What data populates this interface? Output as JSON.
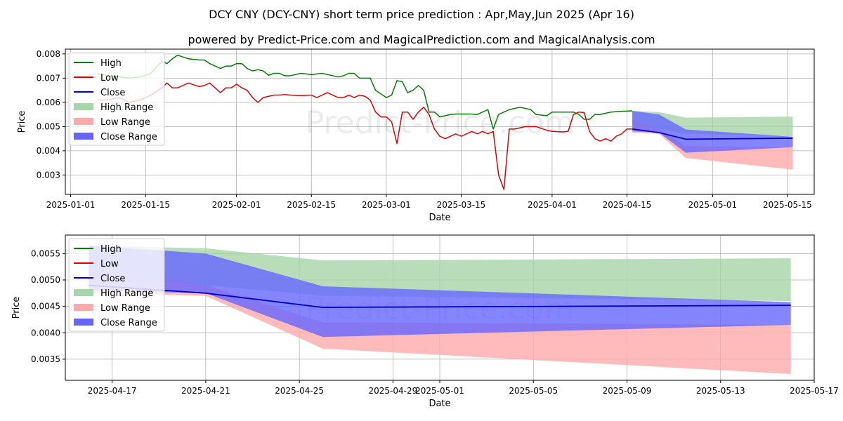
{
  "title": "DCY CNY (DCY-CNY) short term price prediction : Apr,May,Jun 2025 (Apr 16)",
  "subtitle": "powered by Predict-Price.com and MagicalPrediction.com and MagicalAnalysis.com",
  "watermark": "Predict-Price.com",
  "colors": {
    "high": "#008000",
    "low": "#e00000",
    "close": "#0000cc",
    "high_range": "#a8d5a8",
    "low_range": "#ffaaaa",
    "close_range": "#6666ff",
    "grid": "#b0b0b0"
  },
  "chart_data": [
    {
      "type": "line",
      "xlabel": "Date",
      "ylabel": "Price",
      "grid": true,
      "legend_placement": "top-left",
      "xlim": [
        "2024-12-31",
        "2025-05-20"
      ],
      "ylim": [
        0.0022,
        0.0082
      ],
      "xticks": [
        "2025-01-01",
        "2025-01-15",
        "2025-02-01",
        "2025-02-15",
        "2025-03-01",
        "2025-03-15",
        "2025-04-01",
        "2025-04-15",
        "2025-05-01",
        "2025-05-15"
      ],
      "yticks": [
        0.003,
        0.004,
        0.005,
        0.006,
        0.007,
        0.008
      ],
      "ytick_labels": [
        "0.003",
        "0.004",
        "0.005",
        "0.006",
        "0.007",
        "0.008"
      ],
      "legend": [
        "High",
        "Low",
        "Close",
        "High Range",
        "Low Range",
        "Close Range"
      ],
      "history": {
        "high": [
          [
            "2025-01-06",
            0.0072
          ],
          [
            "2025-01-08",
            0.0071
          ],
          [
            "2025-01-10",
            0.00705
          ],
          [
            "2025-01-12",
            0.007
          ],
          [
            "2025-01-14",
            0.00705
          ],
          [
            "2025-01-16",
            0.0072
          ],
          [
            "2025-01-18",
            0.0077
          ],
          [
            "2025-01-19",
            0.0076
          ],
          [
            "2025-01-20",
            0.0078
          ],
          [
            "2025-01-21",
            0.00795
          ],
          [
            "2025-01-23",
            0.0078
          ],
          [
            "2025-01-25",
            0.00775
          ],
          [
            "2025-01-26",
            0.00775
          ],
          [
            "2025-01-27",
            0.0076
          ],
          [
            "2025-01-29",
            0.0074
          ],
          [
            "2025-01-30",
            0.0075
          ],
          [
            "2025-01-31",
            0.0075
          ],
          [
            "2025-02-01",
            0.0076
          ],
          [
            "2025-02-02",
            0.0076
          ],
          [
            "2025-02-03",
            0.0074
          ],
          [
            "2025-02-04",
            0.0073
          ],
          [
            "2025-02-05",
            0.00735
          ],
          [
            "2025-02-06",
            0.0073
          ],
          [
            "2025-02-07",
            0.00712
          ],
          [
            "2025-02-08",
            0.0072
          ],
          [
            "2025-02-09",
            0.0072
          ],
          [
            "2025-02-10",
            0.0071
          ],
          [
            "2025-02-11",
            0.0071
          ],
          [
            "2025-02-13",
            0.0072
          ],
          [
            "2025-02-15",
            0.00715
          ],
          [
            "2025-02-17",
            0.0072
          ],
          [
            "2025-02-19",
            0.0071
          ],
          [
            "2025-02-20",
            0.00705
          ],
          [
            "2025-02-21",
            0.0071
          ],
          [
            "2025-02-22",
            0.0072
          ],
          [
            "2025-02-23",
            0.0072
          ],
          [
            "2025-02-24",
            0.007
          ],
          [
            "2025-02-26",
            0.007
          ],
          [
            "2025-02-27",
            0.0065
          ],
          [
            "2025-03-01",
            0.0062
          ],
          [
            "2025-03-02",
            0.0063
          ],
          [
            "2025-03-03",
            0.0069
          ],
          [
            "2025-03-04",
            0.00685
          ],
          [
            "2025-03-05",
            0.0064
          ],
          [
            "2025-03-06",
            0.0065
          ],
          [
            "2025-03-07",
            0.0067
          ],
          [
            "2025-03-08",
            0.0065
          ],
          [
            "2025-03-09",
            0.0056
          ],
          [
            "2025-03-10",
            0.0056
          ],
          [
            "2025-03-11",
            0.0054
          ],
          [
            "2025-03-13",
            0.0055
          ],
          [
            "2025-03-14",
            0.00552
          ],
          [
            "2025-03-15",
            0.00552
          ],
          [
            "2025-03-17",
            0.00552
          ],
          [
            "2025-03-18",
            0.0055
          ],
          [
            "2025-03-19",
            0.0056
          ],
          [
            "2025-03-20",
            0.0057
          ],
          [
            "2025-03-21",
            0.0049
          ],
          [
            "2025-03-22",
            0.0055
          ],
          [
            "2025-03-23",
            0.0056
          ],
          [
            "2025-03-24",
            0.0057
          ],
          [
            "2025-03-26",
            0.0058
          ],
          [
            "2025-03-28",
            0.0057
          ],
          [
            "2025-03-29",
            0.0055
          ],
          [
            "2025-03-31",
            0.00545
          ],
          [
            "2025-04-01",
            0.0056
          ],
          [
            "2025-04-03",
            0.0056
          ],
          [
            "2025-04-05",
            0.0056
          ],
          [
            "2025-04-06",
            0.0055
          ],
          [
            "2025-04-07",
            0.0053
          ],
          [
            "2025-04-08",
            0.0053
          ],
          [
            "2025-04-09",
            0.0055
          ],
          [
            "2025-04-10",
            0.0055
          ],
          [
            "2025-04-12",
            0.0056
          ],
          [
            "2025-04-14",
            0.00563
          ],
          [
            "2025-04-16",
            0.00565
          ]
        ],
        "low": [
          [
            "2025-01-06",
            0.0061
          ],
          [
            "2025-01-08",
            0.0061
          ],
          [
            "2025-01-10",
            0.0062
          ],
          [
            "2025-01-12",
            0.006
          ],
          [
            "2025-01-14",
            0.0061
          ],
          [
            "2025-01-15",
            0.0062
          ],
          [
            "2025-01-16",
            0.0063
          ],
          [
            "2025-01-18",
            0.0066
          ],
          [
            "2025-01-19",
            0.0068
          ],
          [
            "2025-01-20",
            0.0066
          ],
          [
            "2025-01-21",
            0.0066
          ],
          [
            "2025-01-22",
            0.0067
          ],
          [
            "2025-01-23",
            0.0068
          ],
          [
            "2025-01-25",
            0.00665
          ],
          [
            "2025-01-26",
            0.0067
          ],
          [
            "2025-01-27",
            0.0068
          ],
          [
            "2025-01-28",
            0.0066
          ],
          [
            "2025-01-29",
            0.0064
          ],
          [
            "2025-01-30",
            0.0066
          ],
          [
            "2025-01-31",
            0.0066
          ],
          [
            "2025-02-01",
            0.00675
          ],
          [
            "2025-02-02",
            0.0066
          ],
          [
            "2025-02-03",
            0.0065
          ],
          [
            "2025-02-04",
            0.0062
          ],
          [
            "2025-02-05",
            0.006
          ],
          [
            "2025-02-06",
            0.0062
          ],
          [
            "2025-02-08",
            0.0063
          ],
          [
            "2025-02-09",
            0.0063
          ],
          [
            "2025-02-10",
            0.00632
          ],
          [
            "2025-02-11",
            0.0063
          ],
          [
            "2025-02-13",
            0.00628
          ],
          [
            "2025-02-15",
            0.0063
          ],
          [
            "2025-02-16",
            0.0062
          ],
          [
            "2025-02-18",
            0.0064
          ],
          [
            "2025-02-19",
            0.0063
          ],
          [
            "2025-02-20",
            0.0062
          ],
          [
            "2025-02-21",
            0.0062
          ],
          [
            "2025-02-22",
            0.0063
          ],
          [
            "2025-02-23",
            0.0062
          ],
          [
            "2025-02-24",
            0.0063
          ],
          [
            "2025-02-25",
            0.00625
          ],
          [
            "2025-02-26",
            0.0061
          ],
          [
            "2025-02-27",
            0.0056
          ],
          [
            "2025-02-28",
            0.0054
          ],
          [
            "2025-03-01",
            0.0054
          ],
          [
            "2025-03-02",
            0.0052
          ],
          [
            "2025-03-03",
            0.0043
          ],
          [
            "2025-03-04",
            0.0056
          ],
          [
            "2025-03-05",
            0.0056
          ],
          [
            "2025-03-06",
            0.0053
          ],
          [
            "2025-03-07",
            0.0056
          ],
          [
            "2025-03-08",
            0.0058
          ],
          [
            "2025-03-09",
            0.0055
          ],
          [
            "2025-03-10",
            0.0049
          ],
          [
            "2025-03-11",
            0.0046
          ],
          [
            "2025-03-12",
            0.0045
          ],
          [
            "2025-03-13",
            0.0046
          ],
          [
            "2025-03-14",
            0.0047
          ],
          [
            "2025-03-15",
            0.0046
          ],
          [
            "2025-03-16",
            0.0047
          ],
          [
            "2025-03-17",
            0.0048
          ],
          [
            "2025-03-18",
            0.0047
          ],
          [
            "2025-03-19",
            0.0048
          ],
          [
            "2025-03-20",
            0.0047
          ],
          [
            "2025-03-21",
            0.0048
          ],
          [
            "2025-03-22",
            0.003
          ],
          [
            "2025-03-23",
            0.0024
          ],
          [
            "2025-03-24",
            0.0049
          ],
          [
            "2025-03-25",
            0.0049
          ],
          [
            "2025-03-27",
            0.005
          ],
          [
            "2025-03-29",
            0.005
          ],
          [
            "2025-03-31",
            0.00485
          ],
          [
            "2025-04-01",
            0.0048
          ],
          [
            "2025-04-03",
            0.00478
          ],
          [
            "2025-04-04",
            0.0048
          ],
          [
            "2025-04-05",
            0.0055
          ],
          [
            "2025-04-06",
            0.0056
          ],
          [
            "2025-04-07",
            0.00558
          ],
          [
            "2025-04-08",
            0.0048
          ],
          [
            "2025-04-09",
            0.0045
          ],
          [
            "2025-04-10",
            0.0044
          ],
          [
            "2025-04-11",
            0.0045
          ],
          [
            "2025-04-12",
            0.0044
          ],
          [
            "2025-04-13",
            0.0046
          ],
          [
            "2025-04-14",
            0.0047
          ],
          [
            "2025-04-15",
            0.0049
          ],
          [
            "2025-04-16",
            0.0049
          ]
        ]
      },
      "forecast": {
        "dates": [
          "2025-04-16",
          "2025-04-21",
          "2025-04-26",
          "2025-05-16"
        ],
        "close": [
          0.0049,
          0.00475,
          0.00448,
          0.00452
        ],
        "high_range": [
          [
            0.0051,
            0.00565
          ],
          [
            0.0049,
            0.0056
          ],
          [
            0.0047,
            0.00537
          ],
          [
            0.0046,
            0.00541
          ]
        ],
        "low_range": [
          [
            0.00475,
            0.0053
          ],
          [
            0.0047,
            0.0049
          ],
          [
            0.0037,
            0.0042
          ],
          [
            0.00322,
            0.00415
          ]
        ],
        "close_range": [
          [
            0.0048,
            0.00565
          ],
          [
            0.00475,
            0.0055
          ],
          [
            0.00392,
            0.00488
          ],
          [
            0.00415,
            0.00458
          ]
        ]
      }
    },
    {
      "type": "line",
      "xlabel": "Date",
      "ylabel": "Price",
      "grid": true,
      "legend_placement": "top-left",
      "xlim": [
        "2025-04-15",
        "2025-05-17"
      ],
      "ylim": [
        0.0031,
        0.00585
      ],
      "xticks": [
        "2025-04-17",
        "2025-04-21",
        "2025-04-25",
        "2025-04-29",
        "2025-05-01",
        "2025-05-05",
        "2025-05-09",
        "2025-05-13",
        "2025-05-17"
      ],
      "yticks": [
        0.0035,
        0.004,
        0.0045,
        0.005,
        0.0055
      ],
      "ytick_labels": [
        "0.0035",
        "0.0040",
        "0.0045",
        "0.0050",
        "0.0055"
      ],
      "legend": [
        "High",
        "Low",
        "Close",
        "High Range",
        "Low Range",
        "Close Range"
      ],
      "forecast_ref": 0
    }
  ]
}
